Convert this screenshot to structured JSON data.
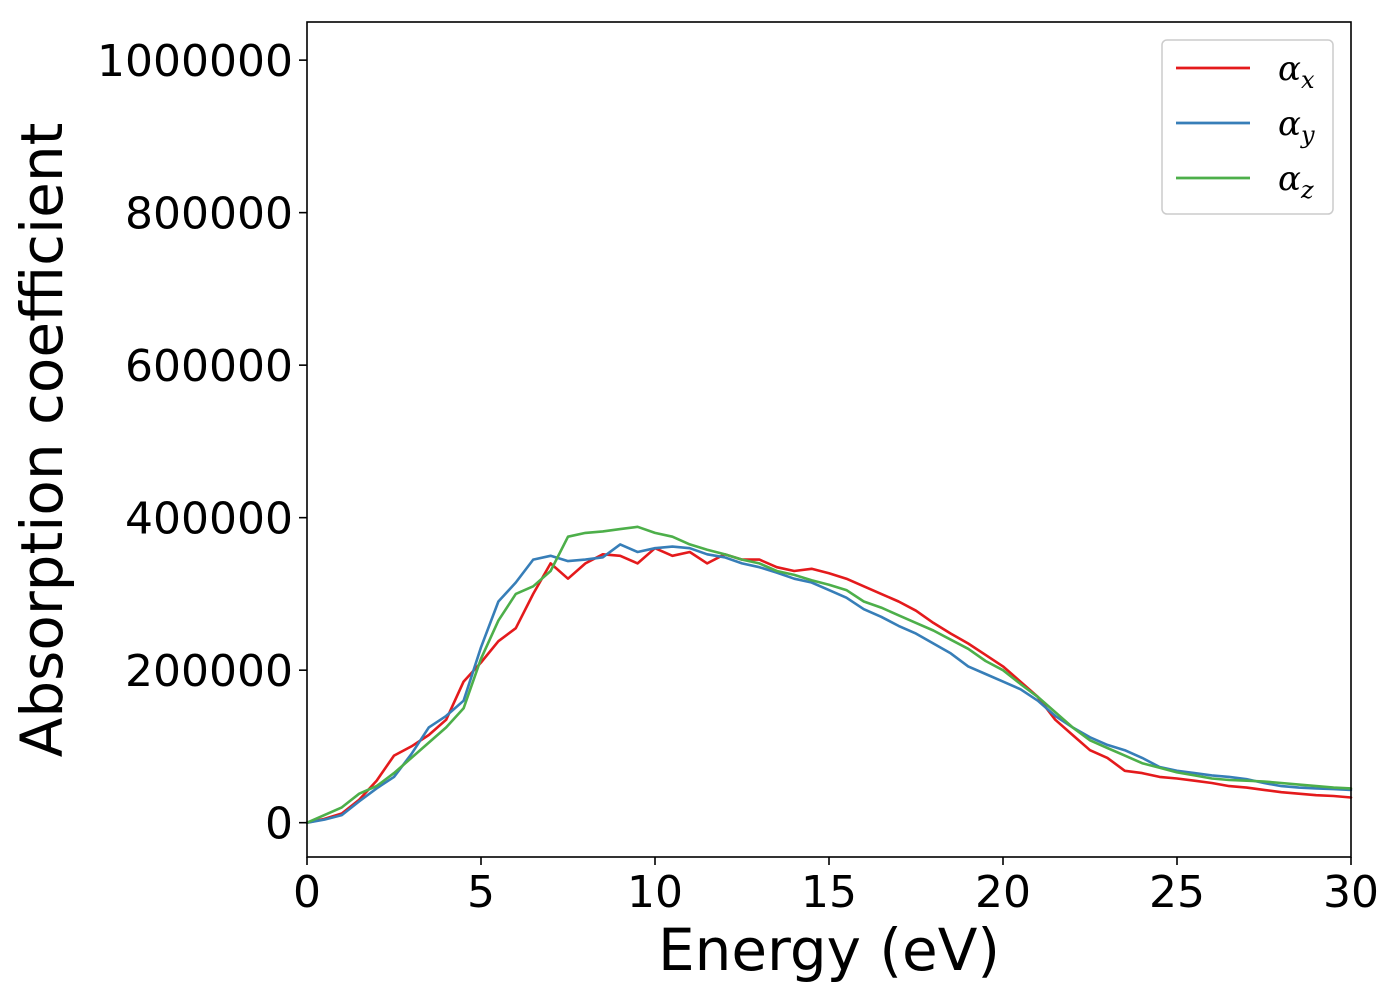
{
  "chart_data": {
    "type": "line",
    "title": "",
    "xlabel": "Energy (eV)",
    "ylabel": "Absorption coefficient",
    "xlim": [
      0,
      30
    ],
    "ylim": [
      -45000,
      1050000
    ],
    "xticks": [
      0,
      5,
      10,
      15,
      20,
      25,
      30
    ],
    "yticks": [
      0,
      200000,
      400000,
      600000,
      800000,
      1000000
    ],
    "grid": false,
    "legend": {
      "position": "top-right"
    },
    "series": [
      {
        "name": "α",
        "subscript": "x",
        "color": "#e41a1c",
        "x": [
          0,
          0.5,
          1,
          1.5,
          2,
          2.5,
          3,
          3.5,
          4,
          4.5,
          5,
          5.5,
          6,
          6.5,
          7,
          7.5,
          8,
          8.5,
          9,
          9.5,
          10,
          10.5,
          11,
          11.5,
          12,
          12.5,
          13,
          13.5,
          14,
          14.5,
          15,
          15.5,
          16,
          16.5,
          17,
          17.5,
          18,
          18.5,
          19,
          19.5,
          20,
          20.5,
          21,
          21.5,
          22,
          22.5,
          23,
          23.5,
          24,
          24.5,
          25,
          25.5,
          26,
          26.5,
          27,
          27.5,
          28,
          28.5,
          29,
          29.5,
          30
        ],
        "y": [
          0,
          5000,
          12000,
          30000,
          55000,
          88000,
          100000,
          115000,
          135000,
          185000,
          210000,
          238000,
          255000,
          300000,
          340000,
          320000,
          340000,
          352000,
          350000,
          340000,
          360000,
          350000,
          355000,
          340000,
          352000,
          345000,
          345000,
          335000,
          330000,
          333000,
          327000,
          320000,
          310000,
          300000,
          290000,
          278000,
          262000,
          248000,
          235000,
          220000,
          205000,
          185000,
          165000,
          135000,
          115000,
          95000,
          85000,
          68000,
          65000,
          60000,
          58000,
          55000,
          52000,
          48000,
          46000,
          43000,
          40000,
          38000,
          36000,
          35000,
          33000
        ]
      },
      {
        "name": "α",
        "subscript": "y",
        "color": "#377eb8",
        "x": [
          0,
          0.5,
          1,
          1.5,
          2,
          2.5,
          3,
          3.5,
          4,
          4.5,
          5,
          5.5,
          6,
          6.5,
          7,
          7.5,
          8,
          8.5,
          9,
          9.5,
          10,
          10.5,
          11,
          11.5,
          12,
          12.5,
          13,
          13.5,
          14,
          14.5,
          15,
          15.5,
          16,
          16.5,
          17,
          17.5,
          18,
          18.5,
          19,
          19.5,
          20,
          20.5,
          21,
          21.5,
          22,
          22.5,
          23,
          23.5,
          24,
          24.5,
          25,
          25.5,
          26,
          26.5,
          27,
          27.5,
          28,
          28.5,
          29,
          29.5,
          30
        ],
        "y": [
          0,
          4000,
          10000,
          28000,
          45000,
          60000,
          90000,
          125000,
          140000,
          160000,
          230000,
          290000,
          315000,
          345000,
          350000,
          343000,
          345000,
          348000,
          365000,
          355000,
          360000,
          362000,
          360000,
          352000,
          348000,
          340000,
          335000,
          328000,
          320000,
          315000,
          305000,
          295000,
          280000,
          270000,
          258000,
          248000,
          235000,
          222000,
          205000,
          195000,
          185000,
          175000,
          160000,
          140000,
          125000,
          112000,
          102000,
          95000,
          85000,
          73000,
          68000,
          65000,
          62000,
          60000,
          57000,
          52000,
          48000,
          46000,
          45000,
          44000,
          43000
        ]
      },
      {
        "name": "α",
        "subscript": "z",
        "color": "#4daf4a",
        "x": [
          0,
          0.5,
          1,
          1.5,
          2,
          2.5,
          3,
          3.5,
          4,
          4.5,
          5,
          5.5,
          6,
          6.5,
          7,
          7.5,
          8,
          8.5,
          9,
          9.5,
          10,
          10.5,
          11,
          11.5,
          12,
          12.5,
          13,
          13.5,
          14,
          14.5,
          15,
          15.5,
          16,
          16.5,
          17,
          17.5,
          18,
          18.5,
          19,
          19.5,
          20,
          20.5,
          21,
          21.5,
          22,
          22.5,
          23,
          23.5,
          24,
          24.5,
          25,
          25.5,
          26,
          26.5,
          27,
          27.5,
          28,
          28.5,
          29,
          29.5,
          30
        ],
        "y": [
          0,
          10000,
          20000,
          38000,
          48000,
          65000,
          85000,
          105000,
          125000,
          150000,
          215000,
          265000,
          300000,
          310000,
          330000,
          375000,
          380000,
          382000,
          385000,
          388000,
          380000,
          375000,
          365000,
          358000,
          352000,
          345000,
          340000,
          330000,
          325000,
          318000,
          312000,
          305000,
          290000,
          282000,
          272000,
          262000,
          252000,
          240000,
          228000,
          212000,
          200000,
          182000,
          165000,
          145000,
          125000,
          108000,
          98000,
          88000,
          78000,
          72000,
          66000,
          62000,
          58000,
          56000,
          55000,
          54000,
          52000,
          50000,
          48000,
          46000,
          45000
        ]
      }
    ]
  }
}
